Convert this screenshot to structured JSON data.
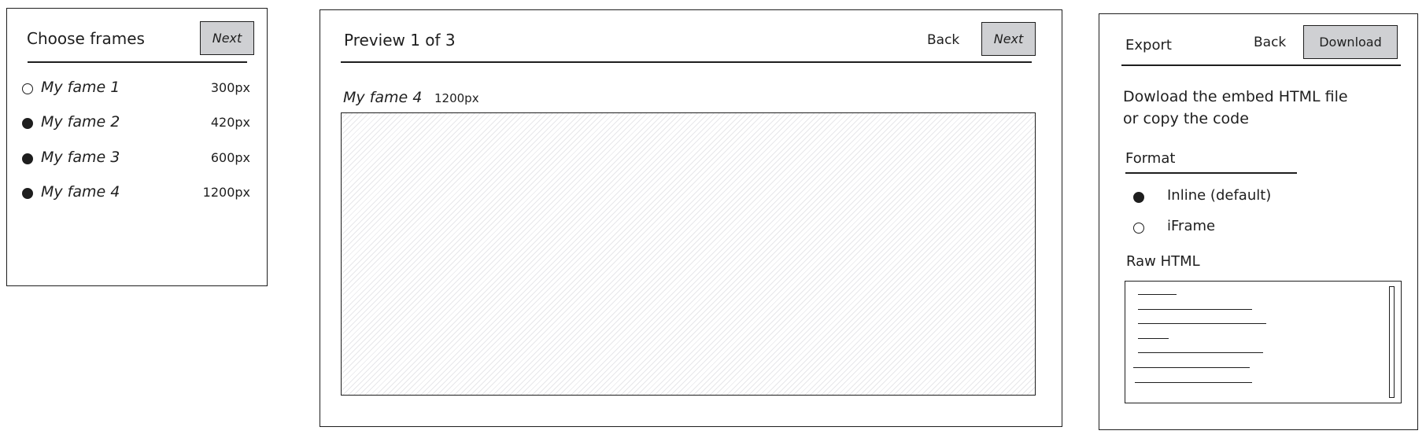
{
  "choose": {
    "title": "Choose frames",
    "next_label": "Next",
    "frames": [
      {
        "name": "My fame 1",
        "size": "300px",
        "selected": false
      },
      {
        "name": "My fame 2",
        "size": "420px",
        "selected": true
      },
      {
        "name": "My fame 3",
        "size": "600px",
        "selected": true
      },
      {
        "name": "My fame 4",
        "size": "1200px",
        "selected": true
      }
    ]
  },
  "preview": {
    "title": "Preview 1 of 3",
    "back_label": "Back",
    "next_label": "Next",
    "frame_name": "My fame 4",
    "frame_size": "1200px"
  },
  "export": {
    "title": "Export",
    "back_label": "Back",
    "download_label": "Download",
    "description_line1": "Dowload the embed HTML file",
    "description_line2": "or copy the code",
    "format_label": "Format",
    "format_options": [
      {
        "label": "Inline (default)",
        "selected": true
      },
      {
        "label": "iFrame",
        "selected": false
      }
    ],
    "raw_html_label": "Raw HTML"
  },
  "colors": {
    "stroke": "#1e1e1e",
    "button_fill": "#cfd0d3",
    "hatch": "#e7e7ea"
  }
}
